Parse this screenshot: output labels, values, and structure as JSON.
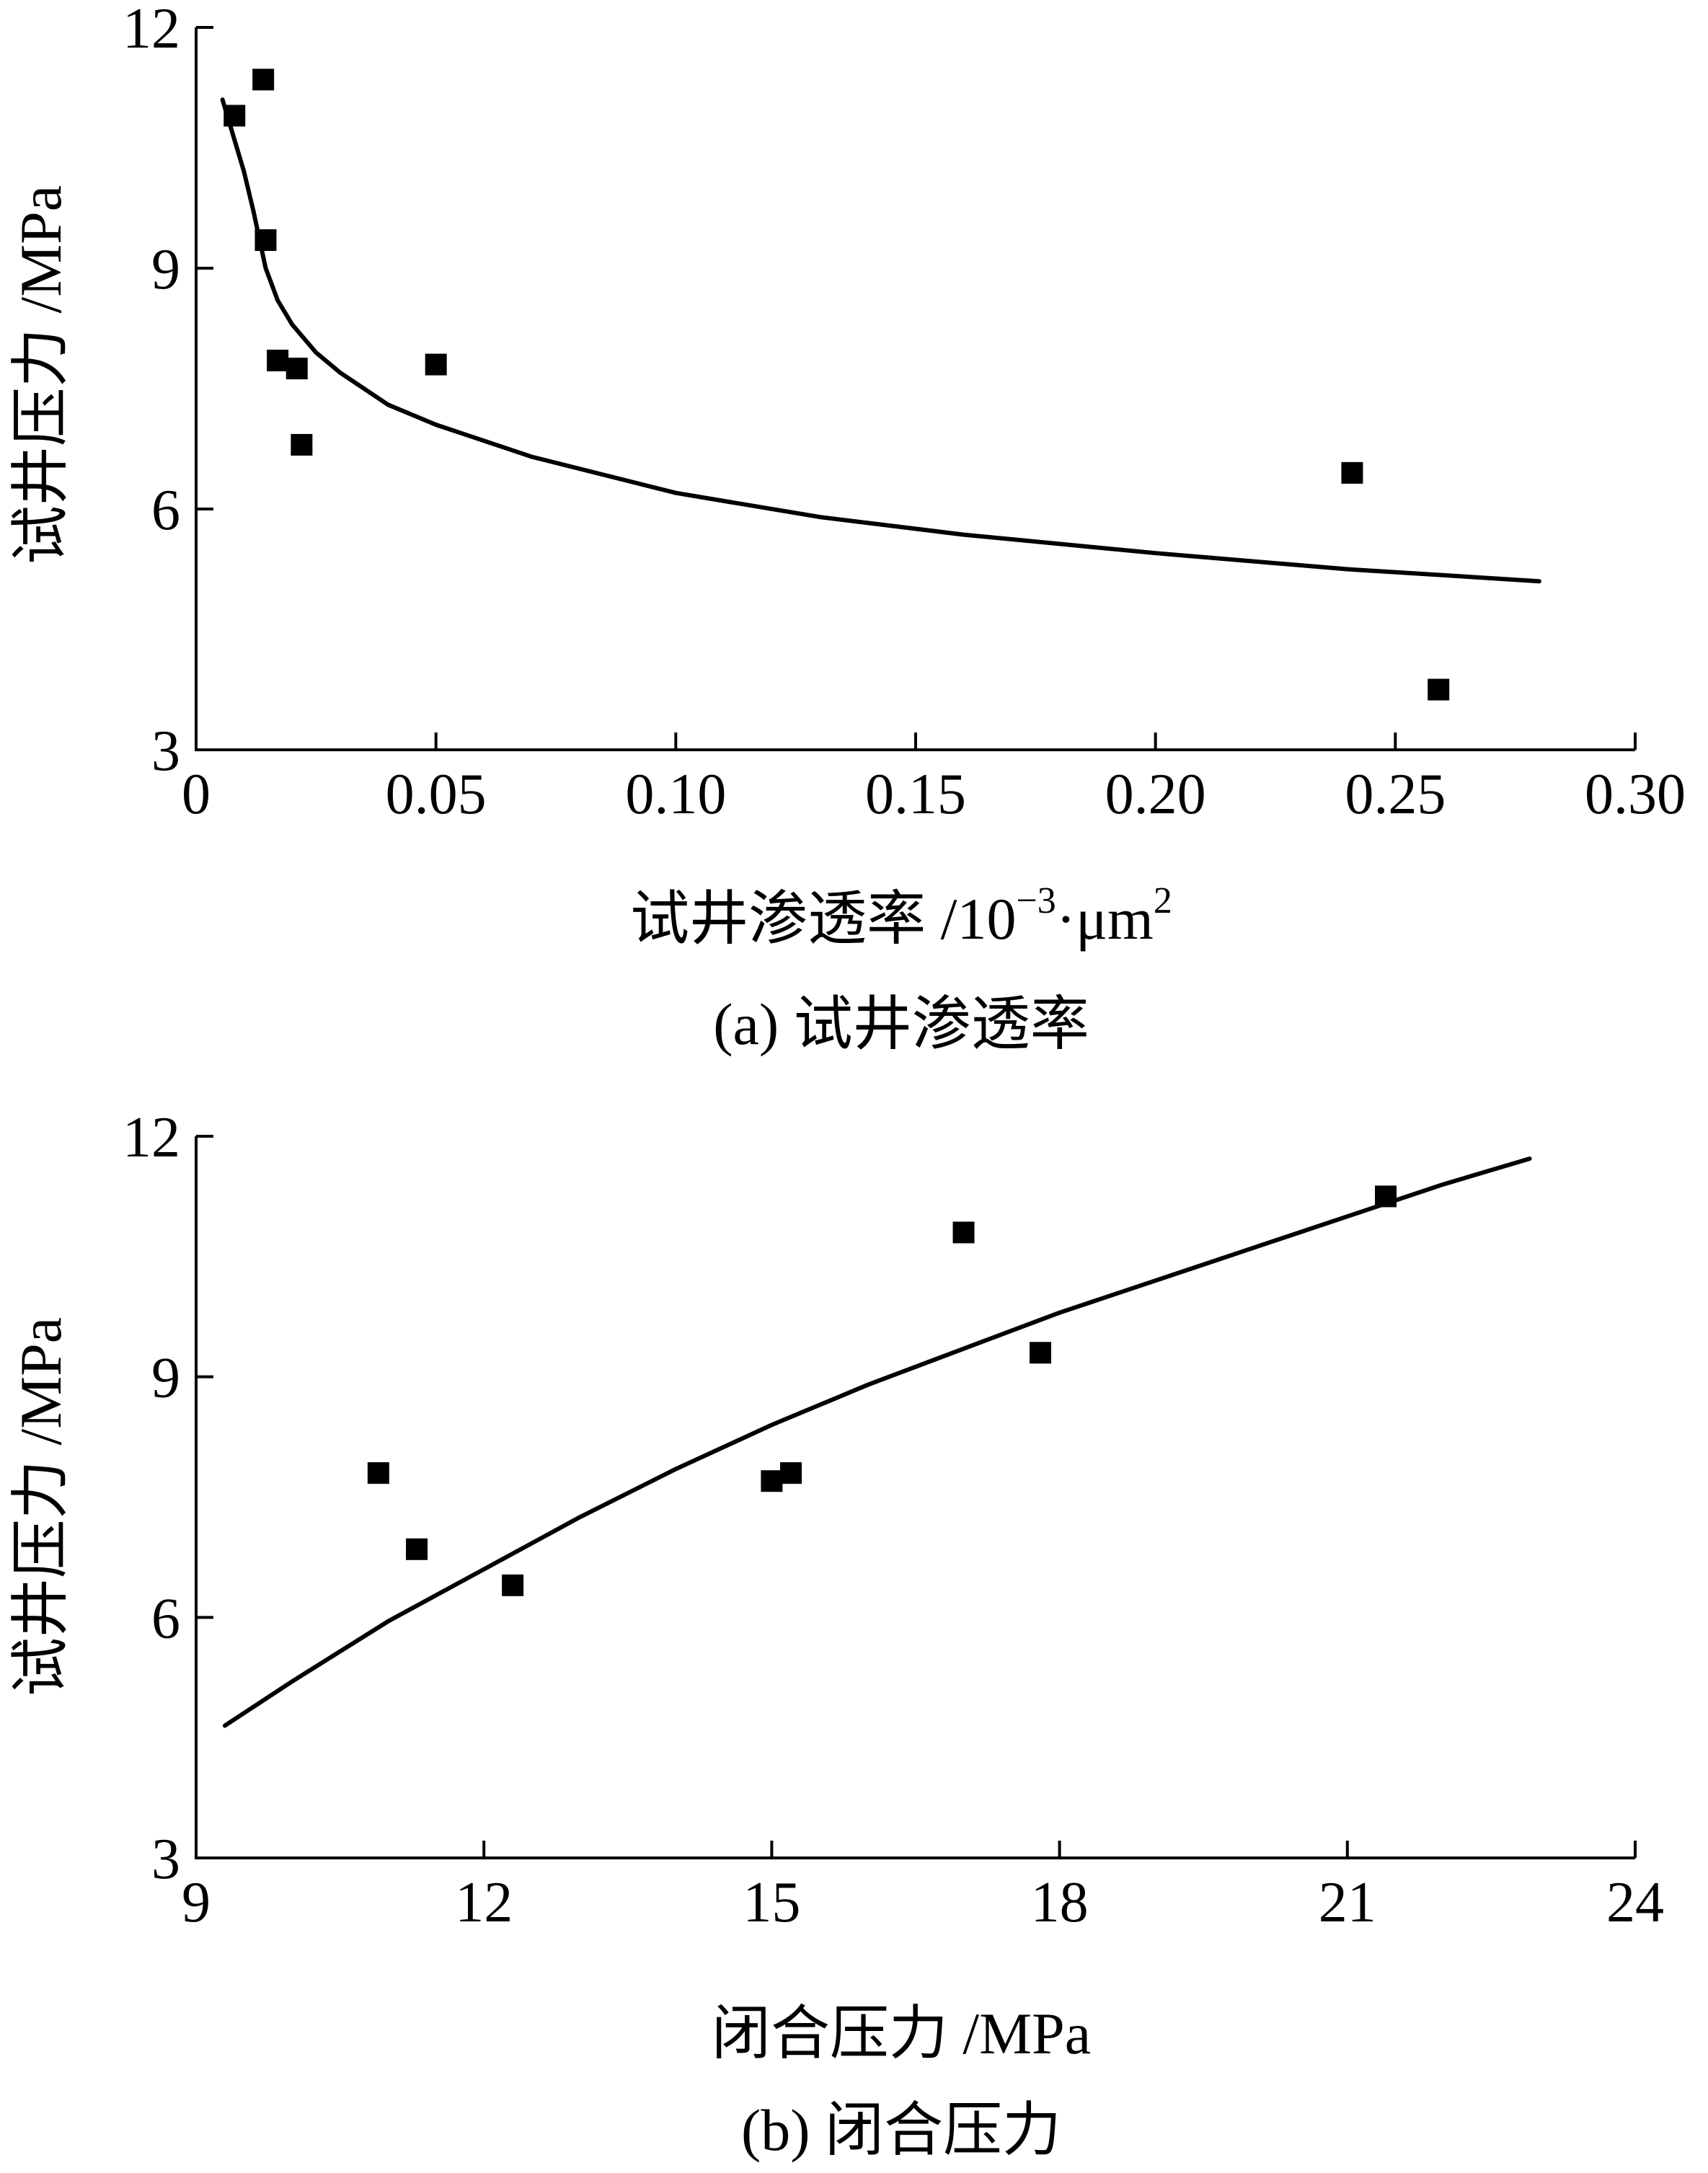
{
  "chart_data": [
    {
      "type": "scatter",
      "caption": "(a)  试井渗透率",
      "xlabel": "试井渗透率 /10",
      "xlabel_sup1": "−3",
      "xlabel_mid": "·μm",
      "xlabel_sup2": "2",
      "ylabel": "试井压力 /MPa",
      "xlim": [
        0,
        0.3
      ],
      "ylim": [
        3,
        12
      ],
      "xticks": [
        0,
        0.05,
        0.1,
        0.15,
        0.2,
        0.25,
        0.3
      ],
      "xtick_labels": [
        "0",
        "0.05",
        "0.10",
        "0.15",
        "0.20",
        "0.25",
        "0.30"
      ],
      "yticks": [
        3,
        6,
        9,
        12
      ],
      "ytick_labels": [
        "3",
        "6",
        "9",
        "12"
      ],
      "series": [
        {
          "kind": "points",
          "x": [
            0.008,
            0.014,
            0.0145,
            0.017,
            0.021,
            0.022,
            0.05,
            0.241,
            0.259
          ],
          "y": [
            10.9,
            11.35,
            9.35,
            7.85,
            7.75,
            6.8,
            7.8,
            6.45,
            3.75
          ]
        },
        {
          "kind": "fit",
          "x": [
            0.0055,
            0.008,
            0.01,
            0.012,
            0.0145,
            0.017,
            0.02,
            0.025,
            0.03,
            0.04,
            0.05,
            0.07,
            0.1,
            0.13,
            0.16,
            0.2,
            0.24,
            0.28
          ],
          "y": [
            11.1,
            10.6,
            10.2,
            9.7,
            9.0,
            8.6,
            8.3,
            7.95,
            7.7,
            7.3,
            7.05,
            6.65,
            6.2,
            5.9,
            5.68,
            5.45,
            5.25,
            5.1
          ]
        }
      ]
    },
    {
      "type": "scatter",
      "caption": "(b)  闭合压力",
      "xlabel": "闭合压力 /MPa",
      "ylabel": "试井压力 /MPa",
      "xlim": [
        9,
        24
      ],
      "ylim": [
        3,
        12
      ],
      "xticks": [
        9,
        12,
        15,
        18,
        21,
        24
      ],
      "xtick_labels": [
        "9",
        "12",
        "15",
        "18",
        "21",
        "24"
      ],
      "yticks": [
        3,
        6,
        9,
        12
      ],
      "ytick_labels": [
        "3",
        "6",
        "9",
        "12"
      ],
      "series": [
        {
          "kind": "points",
          "x": [
            10.9,
            11.3,
            12.3,
            15.0,
            15.2,
            17.0,
            17.8,
            21.4
          ],
          "y": [
            7.8,
            6.85,
            6.4,
            7.7,
            7.8,
            10.8,
            9.3,
            11.25
          ]
        },
        {
          "kind": "fit",
          "x": [
            9.3,
            10.0,
            11.0,
            12.0,
            13.0,
            14.0,
            15.0,
            16.0,
            17.0,
            18.0,
            19.0,
            20.0,
            21.0,
            22.0,
            22.9
          ],
          "y": [
            4.65,
            5.2,
            5.95,
            6.6,
            7.25,
            7.85,
            8.4,
            8.9,
            9.35,
            9.8,
            10.2,
            10.6,
            11.0,
            11.4,
            11.72
          ]
        }
      ]
    }
  ]
}
